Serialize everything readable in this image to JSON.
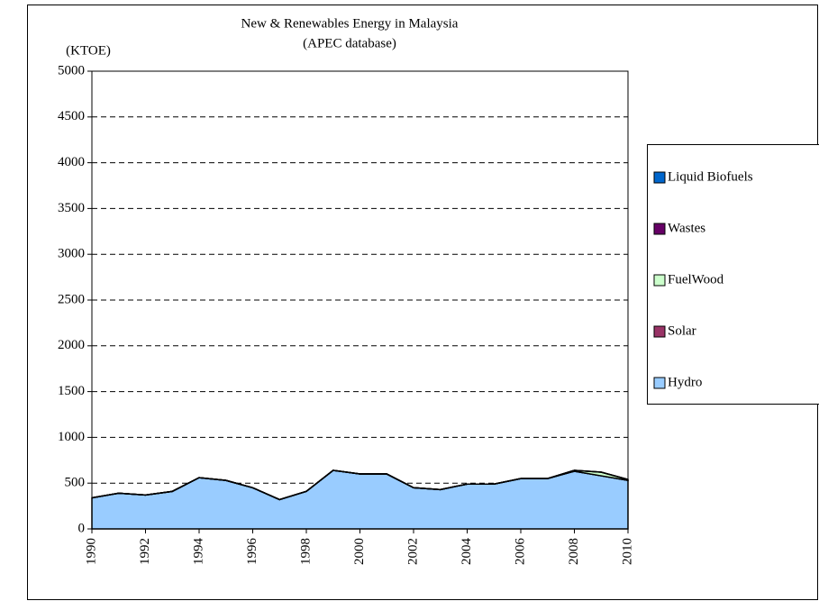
{
  "chart_data": {
    "type": "stacked_area",
    "title": [
      "New & Renewables Energy in Malaysia",
      "(APEC database)"
    ],
    "y_label": "(KTOE)",
    "x": [
      1990,
      1991,
      1992,
      1993,
      1994,
      1995,
      1996,
      1997,
      1998,
      1999,
      2000,
      2001,
      2002,
      2003,
      2004,
      2005,
      2006,
      2007,
      2008,
      2009,
      2010
    ],
    "series": [
      {
        "name": "Hydro",
        "color": "#99ccff",
        "values": [
          340,
          390,
          370,
          410,
          560,
          530,
          450,
          320,
          410,
          640,
          600,
          600,
          450,
          430,
          490,
          490,
          550,
          550,
          630,
          580,
          530
        ]
      },
      {
        "name": "Solar",
        "color": "#993366",
        "values": [
          0,
          0,
          0,
          0,
          0,
          0,
          0,
          0,
          0,
          0,
          0,
          0,
          0,
          0,
          0,
          0,
          0,
          0,
          0,
          0,
          0
        ]
      },
      {
        "name": "FuelWood",
        "color": "#ccffcc",
        "values": [
          0,
          0,
          0,
          0,
          0,
          0,
          0,
          0,
          0,
          0,
          0,
          0,
          0,
          0,
          0,
          0,
          0,
          0,
          10,
          40,
          10
        ]
      },
      {
        "name": "Wastes",
        "color": "#660066",
        "values": [
          0,
          0,
          0,
          0,
          0,
          0,
          0,
          0,
          0,
          0,
          0,
          0,
          0,
          0,
          0,
          0,
          0,
          0,
          0,
          0,
          0
        ]
      },
      {
        "name": "Liquid Biofuels",
        "color": "#0066cc",
        "values": [
          0,
          0,
          0,
          0,
          0,
          0,
          0,
          0,
          0,
          0,
          0,
          0,
          0,
          0,
          0,
          0,
          0,
          0,
          0,
          0,
          0
        ]
      }
    ],
    "xlim": [
      1990,
      2010
    ],
    "xticks": [
      1990,
      1992,
      1994,
      1996,
      1998,
      2000,
      2002,
      2004,
      2006,
      2008,
      2010
    ],
    "ylim": [
      0,
      5000
    ],
    "yticks": [
      0,
      500,
      1000,
      1500,
      2000,
      2500,
      3000,
      3500,
      4000,
      4500,
      5000
    ],
    "grid": true,
    "legend": "right"
  }
}
